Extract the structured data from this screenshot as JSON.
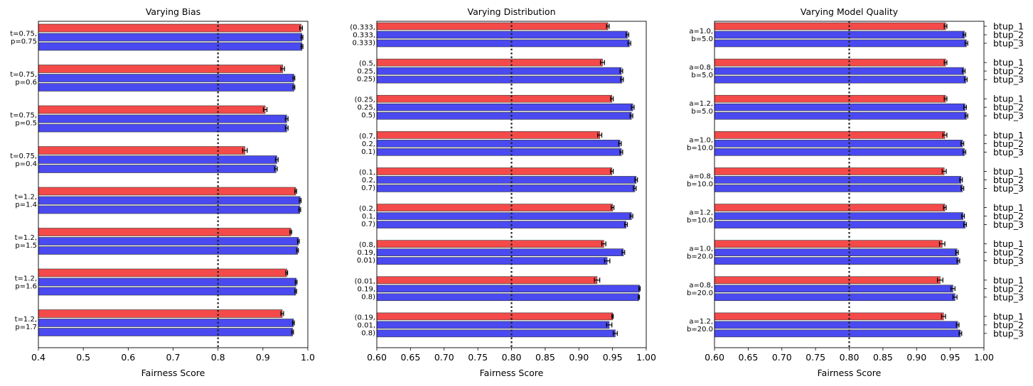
{
  "chart_data": [
    {
      "type": "bar",
      "orientation": "horizontal",
      "title": "Varying Bias",
      "xlabel": "Fairness Score",
      "xlim": [
        0.4,
        1.0
      ],
      "xticks": [
        "0.4",
        "0.5",
        "0.6",
        "0.7",
        "0.8",
        "0.9",
        "1.0"
      ],
      "reference_line": 0.8,
      "groups": [
        {
          "label": [
            "t=0.75,",
            "p=0.75"
          ],
          "values": [
            0.985,
            0.987,
            0.987
          ],
          "errors": [
            0.003,
            0.002,
            0.002
          ]
        },
        {
          "label": [
            "t=0.75,",
            "p=0.6"
          ],
          "values": [
            0.944,
            0.969,
            0.969
          ],
          "errors": [
            0.004,
            0.002,
            0.002
          ]
        },
        {
          "label": [
            "t=0.75,",
            "p=0.5"
          ],
          "values": [
            0.905,
            0.953,
            0.953
          ],
          "errors": [
            0.004,
            0.003,
            0.003
          ]
        },
        {
          "label": [
            "t=0.75,",
            "p=0.4"
          ],
          "values": [
            0.86,
            0.931,
            0.929
          ],
          "errors": [
            0.005,
            0.003,
            0.003
          ]
        },
        {
          "label": [
            "t=1.2,",
            "p=1.4"
          ],
          "values": [
            0.973,
            0.983,
            0.982
          ],
          "errors": [
            0.002,
            0.002,
            0.002
          ]
        },
        {
          "label": [
            "t=1.2,",
            "p=1.5"
          ],
          "values": [
            0.962,
            0.979,
            0.977
          ],
          "errors": [
            0.002,
            0.002,
            0.002
          ]
        },
        {
          "label": [
            "t=1.2,",
            "p=1.6"
          ],
          "values": [
            0.953,
            0.974,
            0.973
          ],
          "errors": [
            0.002,
            0.002,
            0.002
          ]
        },
        {
          "label": [
            "t=1.2,",
            "p=1.7"
          ],
          "values": [
            0.943,
            0.968,
            0.966
          ],
          "errors": [
            0.003,
            0.002,
            0.002
          ]
        }
      ]
    },
    {
      "type": "bar",
      "orientation": "horizontal",
      "title": "Varying Distribution",
      "xlabel": "Fairness Score",
      "xlim": [
        0.6,
        1.0
      ],
      "xticks": [
        "0.60",
        "0.65",
        "0.70",
        "0.75",
        "0.80",
        "0.85",
        "0.90",
        "0.95",
        "1.00"
      ],
      "reference_line": 0.8,
      "groups": [
        {
          "label": [
            "(0.333,",
            "0.333,",
            "0.333)"
          ],
          "values": [
            0.943,
            0.972,
            0.975
          ],
          "errors": [
            0.002,
            0.002,
            0.002
          ]
        },
        {
          "label": [
            "(0.5,",
            "0.25,",
            "0.25)"
          ],
          "values": [
            0.935,
            0.963,
            0.964
          ],
          "errors": [
            0.003,
            0.002,
            0.002
          ]
        },
        {
          "label": [
            "(0.25,",
            "0.25,",
            "0.5)"
          ],
          "values": [
            0.949,
            0.98,
            0.978
          ],
          "errors": [
            0.002,
            0.002,
            0.002
          ]
        },
        {
          "label": [
            "(0.7,",
            "0.2,",
            "0.1)"
          ],
          "values": [
            0.931,
            0.961,
            0.963
          ],
          "errors": [
            0.003,
            0.002,
            0.002
          ]
        },
        {
          "label": [
            "(0.1,",
            "0.2,",
            "0.7)"
          ],
          "values": [
            0.949,
            0.985,
            0.983
          ],
          "errors": [
            0.002,
            0.002,
            0.002
          ]
        },
        {
          "label": [
            "(0.2,",
            "0.1,",
            "0.7)"
          ],
          "values": [
            0.95,
            0.978,
            0.97
          ],
          "errors": [
            0.002,
            0.002,
            0.002
          ]
        },
        {
          "label": [
            "(0.8,",
            "0.19,",
            "0.01)"
          ],
          "values": [
            0.937,
            0.966,
            0.942
          ],
          "errors": [
            0.003,
            0.002,
            0.004
          ]
        },
        {
          "label": [
            "(0.01,",
            "0.19,",
            "0.8)"
          ],
          "values": [
            0.927,
            0.99,
            0.989
          ],
          "errors": [
            0.004,
            0.001,
            0.001
          ]
        },
        {
          "label": [
            "(0.19,",
            "0.01,",
            "0.8)"
          ],
          "values": [
            0.95,
            0.945,
            0.954
          ],
          "errors": [
            0.001,
            0.004,
            0.003
          ]
        }
      ]
    },
    {
      "type": "bar",
      "orientation": "horizontal",
      "title": "Varying Model Quality",
      "xlabel": "Fairness Score",
      "xlim": [
        0.6,
        1.0
      ],
      "xticks": [
        "0.60",
        "0.65",
        "0.70",
        "0.75",
        "0.80",
        "0.85",
        "0.90",
        "0.95",
        "1.00"
      ],
      "reference_line": 0.8,
      "series_labels": [
        "btup_1",
        "btup_2",
        "btup_3"
      ],
      "groups": [
        {
          "label": [
            "a=1.0,",
            "b=5.0"
          ],
          "values": [
            0.943,
            0.971,
            0.974
          ],
          "errors": [
            0.002,
            0.002,
            0.002
          ]
        },
        {
          "label": [
            "a=0.8,",
            "b=5.0"
          ],
          "values": [
            0.943,
            0.97,
            0.973
          ],
          "errors": [
            0.002,
            0.002,
            0.002
          ]
        },
        {
          "label": [
            "a=1.2,",
            "b=5.0"
          ],
          "values": [
            0.943,
            0.972,
            0.974
          ],
          "errors": [
            0.002,
            0.002,
            0.002
          ]
        },
        {
          "label": [
            "a=1.0,",
            "b=10.0"
          ],
          "values": [
            0.942,
            0.968,
            0.971
          ],
          "errors": [
            0.003,
            0.002,
            0.002
          ]
        },
        {
          "label": [
            "a=0.8,",
            "b=10.0"
          ],
          "values": [
            0.941,
            0.966,
            0.968
          ],
          "errors": [
            0.003,
            0.002,
            0.002
          ]
        },
        {
          "label": [
            "a=1.2,",
            "b=10.0"
          ],
          "values": [
            0.942,
            0.969,
            0.972
          ],
          "errors": [
            0.002,
            0.002,
            0.002
          ]
        },
        {
          "label": [
            "a=1.0,",
            "b=20.0"
          ],
          "values": [
            0.938,
            0.96,
            0.962
          ],
          "errors": [
            0.004,
            0.002,
            0.002
          ]
        },
        {
          "label": [
            "a=0.8,",
            "b=20.0"
          ],
          "values": [
            0.935,
            0.954,
            0.957
          ],
          "errors": [
            0.004,
            0.003,
            0.003
          ]
        },
        {
          "label": [
            "a=1.2,",
            "b=20.0"
          ],
          "values": [
            0.94,
            0.961,
            0.965
          ],
          "errors": [
            0.003,
            0.002,
            0.002
          ]
        }
      ]
    }
  ],
  "colors": {
    "red": "#f44a4a",
    "blue": "#4a4af0",
    "edge": "#333333"
  }
}
